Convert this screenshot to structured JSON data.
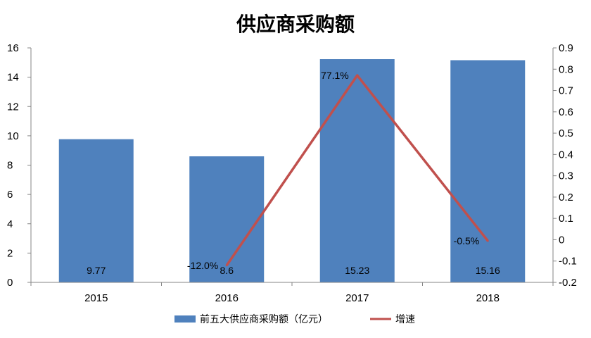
{
  "chart_data": {
    "type": "bar",
    "title": "供应商采购额",
    "categories": [
      "2015",
      "2016",
      "2017",
      "2018"
    ],
    "series": [
      {
        "name": "前五大供应商采购额（亿元）",
        "type": "bar",
        "axis": "left",
        "values": [
          9.77,
          8.6,
          15.23,
          15.16
        ],
        "data_labels": [
          "9.77",
          "8.6",
          "15.23",
          "15.16"
        ],
        "color": "#4F81BD"
      },
      {
        "name": "增速",
        "type": "line",
        "axis": "right",
        "values": [
          null,
          -0.12,
          0.771,
          -0.005
        ],
        "data_labels": [
          "",
          "-12.0%",
          "77.1%",
          "-0.5%"
        ],
        "color": "#C0504D"
      }
    ],
    "y_left": {
      "ylim": [
        0,
        16
      ],
      "ticks": [
        "0",
        "2",
        "4",
        "6",
        "8",
        "10",
        "12",
        "14",
        "16"
      ]
    },
    "y_right": {
      "ylim": [
        -0.2,
        0.9
      ],
      "ticks": [
        "-0.2",
        "-0.1",
        "0",
        "0.1",
        "0.2",
        "0.3",
        "0.4",
        "0.5",
        "0.6",
        "0.7",
        "0.8",
        "0.9"
      ]
    },
    "grid": false,
    "legend": "bottom"
  }
}
